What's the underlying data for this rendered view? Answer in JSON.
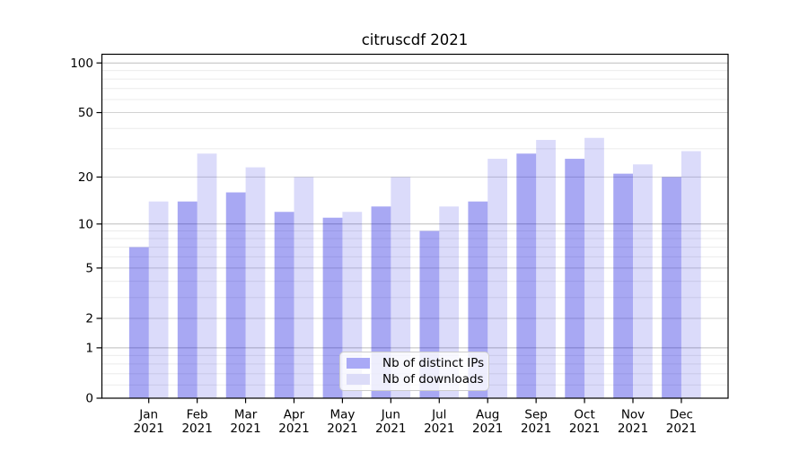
{
  "chart_data": {
    "type": "bar",
    "title": "citruscdf 2021",
    "categories": [
      "Jan 2021",
      "Feb 2021",
      "Mar 2021",
      "Apr 2021",
      "May 2021",
      "Jun 2021",
      "Jul 2021",
      "Aug 2021",
      "Sep 2021",
      "Oct 2021",
      "Nov 2021",
      "Dec 2021"
    ],
    "series": [
      {
        "name": "Nb of distinct IPs",
        "values": [
          7,
          14,
          16,
          12,
          11,
          13,
          9,
          14,
          28,
          26,
          21,
          20
        ],
        "color": "#a9a9f6",
        "fill": "rgba(0,0,221,0.34)"
      },
      {
        "name": "Nb of downloads",
        "values": [
          14,
          28,
          23,
          20,
          12,
          20,
          13,
          26,
          34,
          35,
          24,
          29
        ],
        "color": "#dcdcf8",
        "fill": "rgba(0,0,221,0.14)"
      }
    ],
    "xlabel": "",
    "ylabel": "",
    "yscale": "log1p",
    "ylim": [
      0,
      113
    ],
    "yticks": [
      100,
      50,
      20,
      10,
      5,
      2,
      1,
      0
    ],
    "yticks_minor": [
      0.2,
      0.4,
      0.6,
      0.8,
      3,
      4,
      6,
      7,
      8,
      9,
      30,
      40,
      60,
      70,
      80,
      90
    ],
    "grid": true,
    "legend_position": "lower-center-inside"
  },
  "colors": {
    "grid_minor": "#ebebeb",
    "grid_major": "#d2d2d2",
    "grid_decade": "#bdbdbd",
    "spine": "#000000",
    "tick": "#000000",
    "legend_border": "#cccccc"
  }
}
